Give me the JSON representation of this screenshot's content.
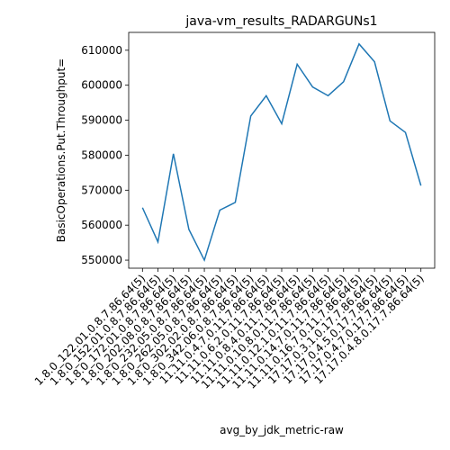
{
  "chart_data": {
    "type": "line",
    "title": "java-vm_results_RADARGUNs1",
    "xlabel": "avg_by_jdk_metric-raw",
    "ylabel": "BasicOperations.Put.Throughput=",
    "categories": [
      "1.8.0_122.01.0.8.7.86.64(5)",
      "1.8.0_152.01.0.8.7.86.64(5)",
      "1.8.0_172.01.0.8.7.86.64(5)",
      "1.8.0_202.08.0.8.7.86.64(5)",
      "1.8.0_232.05.0.8.7.86.64(5)",
      "1.8.0_262.05.0.8.7.86.64(5)",
      "1.8.0_302.02.0.8.7.86.64(5)",
      "1.8.0_342.06.0.8.7.86.64(5)",
      "11.11.0.4.7.0.11.7.86.64(5)",
      "11.11.0.6.2.0.11.7.86.64(5)",
      "11.11.0.8.4.0.11.7.86.64(5)",
      "11.11.0.10.8.0.11.7.86.64(5)",
      "11.11.0.12.1.0.11.7.86.64(5)",
      "11.11.0.14.7.0.11.7.86.64(5)",
      "11.11.0.16.7.0.11.7.86.64(5)",
      "17.17.0.3.1.0.17.7.86.64(5)",
      "17.17.0.4.5.0.17.7.86.64(5)",
      "17.17.0.4.7.0.17.7.86.64(5)",
      "17.17.0.4.8.0.17.7.86.64(5)"
    ],
    "series": [
      {
        "name": "BasicOperations.Put.Throughput=",
        "color": "#1f77b4",
        "values": [
          565000,
          555200,
          580400,
          558800,
          550000,
          564300,
          566500,
          591200,
          597000,
          589000,
          606000,
          599500,
          597000,
          601000,
          611800,
          606700,
          589800,
          586500,
          571300
        ]
      }
    ],
    "ylim": [
      547700,
      615100
    ],
    "yticks": [
      550000,
      560000,
      570000,
      580000,
      590000,
      600000,
      610000
    ]
  }
}
